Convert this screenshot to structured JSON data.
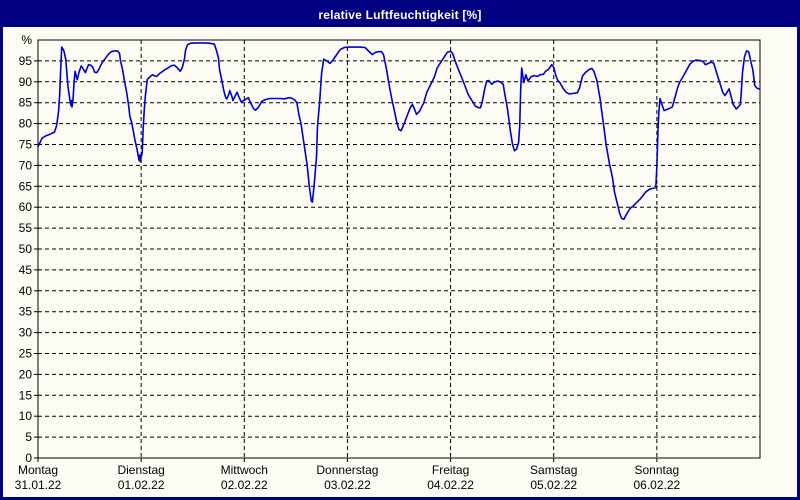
{
  "title": "relative Luftfeuchtigkeit [%]",
  "colors": {
    "window_border": "#000080",
    "title_bg": "#000080",
    "title_fg": "#ffffff",
    "plot_bg": "#fcfcf5",
    "grid": "#000000",
    "line": "#0000cd"
  },
  "chart_data": {
    "type": "line",
    "title": "relative Luftfeuchtigkeit [%]",
    "ylabel": "relative Luftfeuchtigkeit",
    "y_unit": "%",
    "ylim": [
      0,
      100
    ],
    "y_tick_step": 5,
    "y_tick_labels": [
      "0",
      "5",
      "10",
      "15",
      "20",
      "25",
      "30",
      "35",
      "40",
      "45",
      "50",
      "55",
      "60",
      "65",
      "70",
      "75",
      "80",
      "85",
      "90",
      "95"
    ],
    "grid": "dashed",
    "legend": "none",
    "x_unit": "days",
    "xlim_days": [
      0,
      7
    ],
    "x_days": [
      {
        "name": "Montag",
        "date": "31.01.22"
      },
      {
        "name": "Dienstag",
        "date": "01.02.22"
      },
      {
        "name": "Mittwoch",
        "date": "02.02.22"
      },
      {
        "name": "Donnerstag",
        "date": "03.02.22"
      },
      {
        "name": "Freitag",
        "date": "04.02.22"
      },
      {
        "name": "Samstag",
        "date": "05.02.22"
      },
      {
        "name": "Sonntag",
        "date": "06.02.22"
      }
    ],
    "series": [
      {
        "name": "relative Luftfeuchtigkeit",
        "color": "#0000cd",
        "points": [
          [
            0.0,
            74.5
          ],
          [
            0.02,
            75.5
          ],
          [
            0.04,
            76.5
          ],
          [
            0.07,
            77.0
          ],
          [
            0.12,
            77.5
          ],
          [
            0.16,
            78.0
          ],
          [
            0.18,
            79.5
          ],
          [
            0.2,
            83.0
          ],
          [
            0.21,
            87.0
          ],
          [
            0.22,
            93.0
          ],
          [
            0.23,
            98.3
          ],
          [
            0.25,
            97.5
          ],
          [
            0.27,
            95.3
          ],
          [
            0.29,
            89.0
          ],
          [
            0.31,
            85.5
          ],
          [
            0.32,
            84.3
          ],
          [
            0.325,
            85.5
          ],
          [
            0.33,
            84.0
          ],
          [
            0.34,
            86.0
          ],
          [
            0.35,
            90.0
          ],
          [
            0.36,
            92.5
          ],
          [
            0.38,
            90.5
          ],
          [
            0.4,
            92.5
          ],
          [
            0.42,
            93.8
          ],
          [
            0.44,
            93.0
          ],
          [
            0.46,
            92.2
          ],
          [
            0.48,
            93.5
          ],
          [
            0.49,
            94.1
          ],
          [
            0.51,
            94.0
          ],
          [
            0.53,
            93.5
          ],
          [
            0.55,
            92.3
          ],
          [
            0.57,
            92.2
          ],
          [
            0.59,
            93.0
          ],
          [
            0.62,
            94.5
          ],
          [
            0.65,
            95.5
          ],
          [
            0.68,
            96.5
          ],
          [
            0.71,
            97.2
          ],
          [
            0.74,
            97.4
          ],
          [
            0.77,
            97.4
          ],
          [
            0.79,
            96.8
          ],
          [
            0.8,
            95.0
          ],
          [
            0.82,
            92.9
          ],
          [
            0.84,
            90.0
          ],
          [
            0.86,
            87.4
          ],
          [
            0.88,
            84.0
          ],
          [
            0.89,
            81.8
          ],
          [
            0.91,
            80.0
          ],
          [
            0.92,
            78.7
          ],
          [
            0.94,
            76.0
          ],
          [
            0.96,
            73.9
          ],
          [
            0.97,
            72.5
          ],
          [
            0.98,
            71.2
          ],
          [
            0.985,
            72.5
          ],
          [
            0.99,
            70.9
          ],
          [
            1.01,
            73.0
          ],
          [
            1.02,
            79.0
          ],
          [
            1.03,
            83.0
          ],
          [
            1.04,
            86.5
          ],
          [
            1.06,
            90.6
          ],
          [
            1.09,
            91.3
          ],
          [
            1.11,
            91.7
          ],
          [
            1.13,
            91.4
          ],
          [
            1.15,
            91.3
          ],
          [
            1.18,
            92.0
          ],
          [
            1.21,
            92.5
          ],
          [
            1.23,
            92.9
          ],
          [
            1.26,
            93.3
          ],
          [
            1.29,
            93.8
          ],
          [
            1.32,
            94.0
          ],
          [
            1.35,
            93.4
          ],
          [
            1.38,
            92.5
          ],
          [
            1.4,
            93.5
          ],
          [
            1.42,
            95.5
          ],
          [
            1.43,
            97.5
          ],
          [
            1.45,
            98.9
          ],
          [
            1.48,
            99.2
          ],
          [
            1.52,
            99.3
          ],
          [
            1.57,
            99.3
          ],
          [
            1.62,
            99.3
          ],
          [
            1.67,
            99.2
          ],
          [
            1.71,
            99.0
          ],
          [
            1.73,
            97.5
          ],
          [
            1.75,
            95.7
          ],
          [
            1.76,
            93.0
          ],
          [
            1.78,
            90.6
          ],
          [
            1.8,
            88.0
          ],
          [
            1.82,
            86.2
          ],
          [
            1.83,
            85.9
          ],
          [
            1.85,
            87.0
          ],
          [
            1.86,
            87.9
          ],
          [
            1.88,
            86.5
          ],
          [
            1.89,
            85.5
          ],
          [
            1.91,
            86.5
          ],
          [
            1.93,
            87.5
          ],
          [
            1.95,
            86.3
          ],
          [
            1.97,
            85.2
          ],
          [
            2.0,
            85.6
          ],
          [
            2.04,
            86.2
          ],
          [
            2.06,
            85.0
          ],
          [
            2.09,
            83.6
          ],
          [
            2.11,
            83.2
          ],
          [
            2.14,
            84.0
          ],
          [
            2.17,
            85.3
          ],
          [
            2.21,
            85.8
          ],
          [
            2.25,
            86.0
          ],
          [
            2.3,
            86.0
          ],
          [
            2.35,
            86.0
          ],
          [
            2.39,
            85.9
          ],
          [
            2.43,
            86.2
          ],
          [
            2.46,
            86.1
          ],
          [
            2.49,
            85.6
          ],
          [
            2.51,
            85.0
          ],
          [
            2.53,
            82.0
          ],
          [
            2.55,
            80.0
          ],
          [
            2.58,
            75.0
          ],
          [
            2.61,
            70.0
          ],
          [
            2.63,
            65.0
          ],
          [
            2.65,
            61.5
          ],
          [
            2.66,
            61.2
          ],
          [
            2.68,
            66.0
          ],
          [
            2.7,
            72.0
          ],
          [
            2.71,
            79.4
          ],
          [
            2.73,
            85.0
          ],
          [
            2.75,
            92.0
          ],
          [
            2.77,
            95.4
          ],
          [
            2.8,
            95.0
          ],
          [
            2.83,
            94.4
          ],
          [
            2.86,
            95.2
          ],
          [
            2.89,
            96.3
          ],
          [
            2.93,
            97.7
          ],
          [
            2.97,
            98.2
          ],
          [
            3.02,
            98.3
          ],
          [
            3.07,
            98.3
          ],
          [
            3.12,
            98.3
          ],
          [
            3.17,
            98.2
          ],
          [
            3.22,
            97.0
          ],
          [
            3.24,
            96.5
          ],
          [
            3.27,
            97.0
          ],
          [
            3.3,
            97.2
          ],
          [
            3.33,
            97.2
          ],
          [
            3.35,
            96.5
          ],
          [
            3.38,
            92.9
          ],
          [
            3.41,
            88.5
          ],
          [
            3.43,
            85.9
          ],
          [
            3.46,
            82.5
          ],
          [
            3.48,
            80.2
          ],
          [
            3.5,
            78.6
          ],
          [
            3.52,
            78.3
          ],
          [
            3.55,
            80.0
          ],
          [
            3.58,
            82.0
          ],
          [
            3.61,
            83.8
          ],
          [
            3.63,
            84.6
          ],
          [
            3.65,
            83.5
          ],
          [
            3.67,
            82.2
          ],
          [
            3.7,
            83.0
          ],
          [
            3.74,
            85.0
          ],
          [
            3.77,
            87.5
          ],
          [
            3.81,
            89.5
          ],
          [
            3.84,
            91.0
          ],
          [
            3.87,
            93.3
          ],
          [
            3.9,
            94.5
          ],
          [
            3.94,
            96.0
          ],
          [
            3.97,
            97.1
          ],
          [
            4.0,
            97.3
          ],
          [
            4.02,
            96.8
          ],
          [
            4.04,
            95.3
          ],
          [
            4.07,
            93.3
          ],
          [
            4.11,
            90.9
          ],
          [
            4.14,
            89.0
          ],
          [
            4.17,
            87.0
          ],
          [
            4.21,
            85.4
          ],
          [
            4.24,
            84.2
          ],
          [
            4.27,
            83.8
          ],
          [
            4.29,
            83.8
          ],
          [
            4.31,
            85.5
          ],
          [
            4.33,
            88.2
          ],
          [
            4.35,
            90.2
          ],
          [
            4.37,
            90.3
          ],
          [
            4.4,
            89.4
          ],
          [
            4.43,
            90.0
          ],
          [
            4.46,
            90.2
          ],
          [
            4.49,
            89.8
          ],
          [
            4.51,
            89.4
          ],
          [
            4.53,
            86.5
          ],
          [
            4.55,
            83.8
          ],
          [
            4.58,
            78.2
          ],
          [
            4.6,
            75.1
          ],
          [
            4.62,
            73.5
          ],
          [
            4.64,
            73.9
          ],
          [
            4.66,
            75.5
          ],
          [
            4.67,
            79.4
          ],
          [
            4.68,
            88.2
          ],
          [
            4.69,
            93.3
          ],
          [
            4.71,
            89.8
          ],
          [
            4.73,
            91.7
          ],
          [
            4.75,
            90.2
          ],
          [
            4.78,
            91.2
          ],
          [
            4.81,
            91.5
          ],
          [
            4.84,
            91.3
          ],
          [
            4.87,
            91.7
          ],
          [
            4.9,
            91.8
          ],
          [
            4.92,
            92.5
          ],
          [
            4.95,
            93.0
          ],
          [
            4.98,
            94.1
          ],
          [
            5.0,
            93.5
          ],
          [
            5.02,
            91.5
          ],
          [
            5.04,
            90.3
          ],
          [
            5.06,
            89.8
          ],
          [
            5.09,
            88.5
          ],
          [
            5.12,
            87.5
          ],
          [
            5.15,
            87.1
          ],
          [
            5.18,
            87.2
          ],
          [
            5.21,
            87.3
          ],
          [
            5.23,
            87.4
          ],
          [
            5.25,
            88.5
          ],
          [
            5.28,
            91.4
          ],
          [
            5.31,
            92.3
          ],
          [
            5.34,
            92.9
          ],
          [
            5.37,
            93.2
          ],
          [
            5.39,
            92.5
          ],
          [
            5.42,
            90.2
          ],
          [
            5.45,
            85.9
          ],
          [
            5.48,
            80.3
          ],
          [
            5.51,
            74.7
          ],
          [
            5.54,
            70.5
          ],
          [
            5.57,
            67.0
          ],
          [
            5.59,
            63.5
          ],
          [
            5.62,
            60.5
          ],
          [
            5.64,
            58.5
          ],
          [
            5.66,
            57.3
          ],
          [
            5.68,
            57.1
          ],
          [
            5.71,
            58.5
          ],
          [
            5.74,
            59.7
          ],
          [
            5.78,
            60.5
          ],
          [
            5.81,
            61.3
          ],
          [
            5.84,
            62.0
          ],
          [
            5.87,
            62.9
          ],
          [
            5.89,
            63.6
          ],
          [
            5.93,
            64.3
          ],
          [
            5.96,
            64.5
          ],
          [
            5.99,
            64.7
          ],
          [
            6.0,
            70.0
          ],
          [
            6.01,
            78.0
          ],
          [
            6.02,
            83.0
          ],
          [
            6.03,
            86.0
          ],
          [
            6.05,
            84.5
          ],
          [
            6.07,
            83.1
          ],
          [
            6.09,
            83.3
          ],
          [
            6.12,
            83.6
          ],
          [
            6.15,
            84.0
          ],
          [
            6.18,
            86.6
          ],
          [
            6.2,
            88.5
          ],
          [
            6.22,
            89.8
          ],
          [
            6.26,
            91.5
          ],
          [
            6.29,
            92.9
          ],
          [
            6.32,
            94.2
          ],
          [
            6.35,
            94.9
          ],
          [
            6.38,
            95.2
          ],
          [
            6.42,
            95.1
          ],
          [
            6.45,
            94.8
          ],
          [
            6.47,
            94.1
          ],
          [
            6.5,
            94.4
          ],
          [
            6.52,
            94.7
          ],
          [
            6.55,
            94.5
          ],
          [
            6.57,
            93.0
          ],
          [
            6.59,
            91.3
          ],
          [
            6.62,
            89.0
          ],
          [
            6.64,
            87.4
          ],
          [
            6.66,
            86.7
          ],
          [
            6.68,
            87.5
          ],
          [
            6.7,
            88.3
          ],
          [
            6.72,
            86.5
          ],
          [
            6.74,
            84.6
          ],
          [
            6.77,
            83.5
          ],
          [
            6.79,
            84.0
          ],
          [
            6.81,
            84.6
          ],
          [
            6.82,
            88.0
          ],
          [
            6.83,
            92.2
          ],
          [
            6.85,
            96.0
          ],
          [
            6.87,
            97.4
          ],
          [
            6.89,
            97.2
          ],
          [
            6.91,
            95.0
          ],
          [
            6.93,
            92.9
          ],
          [
            6.95,
            89.1
          ],
          [
            6.97,
            88.5
          ],
          [
            6.99,
            88.3
          ]
        ]
      }
    ]
  }
}
